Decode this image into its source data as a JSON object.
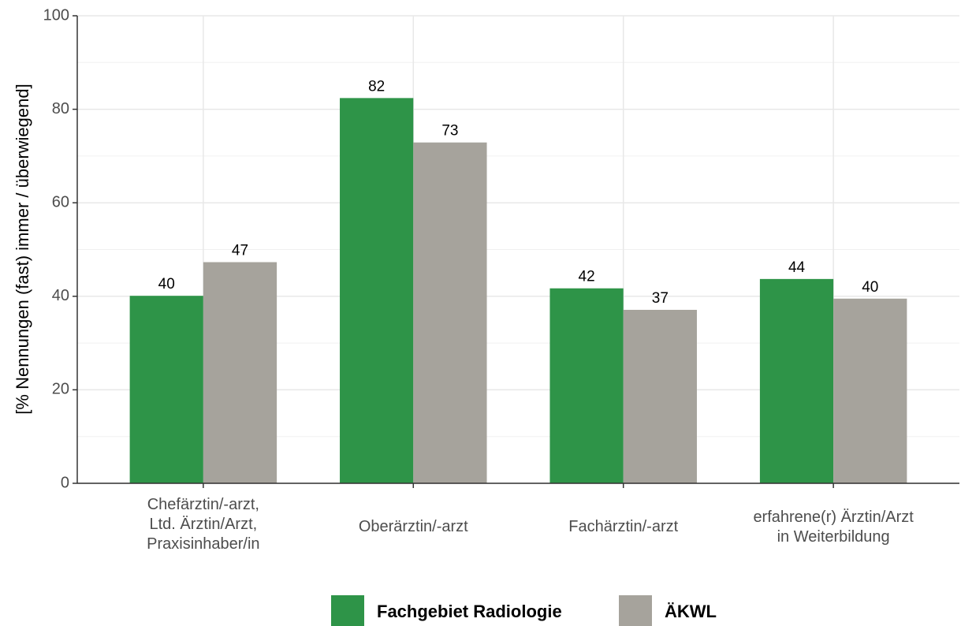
{
  "chart_data": {
    "type": "bar",
    "y_label": "[% Nennungen (fast) immer / überwiegend]",
    "categories": [
      "Chefärztin/-arzt,\nLtd. Ärztin/Arzt,\nPraxisinhaber/in",
      "Oberärztin/-arzt",
      "Fachärztin/-arzt",
      "erfahrene(r) Ärztin/Arzt\nin Weiterbildung"
    ],
    "series": [
      {
        "name": "Fachgebiet Radiologie",
        "color": "#2e9448",
        "values": [
          40.1,
          82.4,
          41.7,
          43.7
        ],
        "value_labels": [
          "40",
          "82",
          "42",
          "44"
        ]
      },
      {
        "name": "ÄKWL",
        "color": "#a6a39c",
        "values": [
          47.3,
          72.9,
          37.1,
          39.5
        ],
        "value_labels": [
          "47",
          "73",
          "37",
          "40"
        ]
      }
    ],
    "ylim": [
      0,
      100
    ],
    "yticks": [
      0,
      20,
      40,
      60,
      80,
      100
    ],
    "grid": true,
    "legend": "bottom"
  }
}
